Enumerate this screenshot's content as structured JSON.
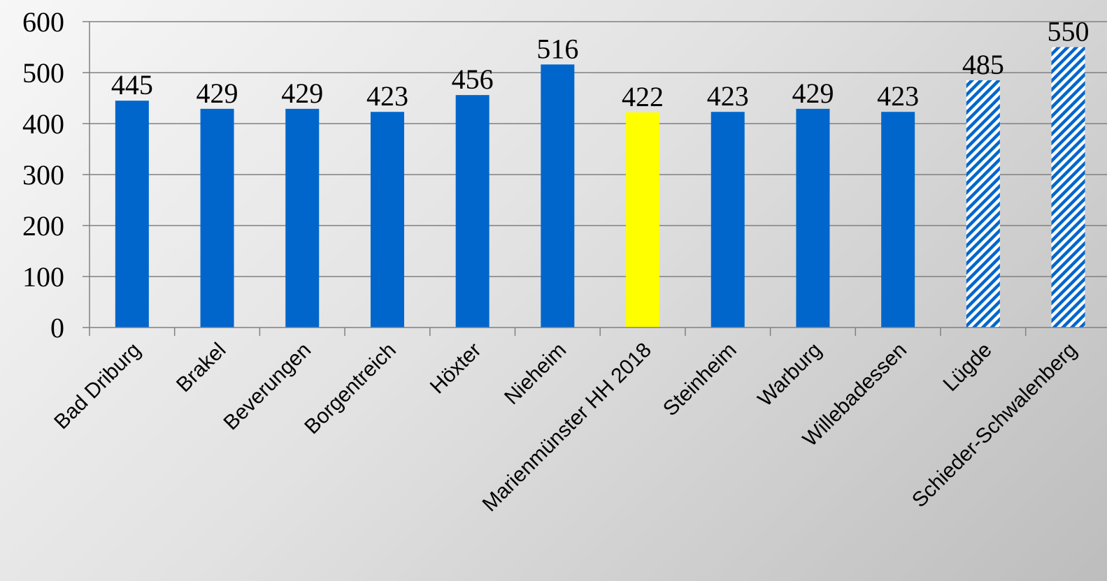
{
  "chart_data": {
    "type": "bar",
    "categories": [
      "Bad Driburg",
      "Brakel",
      "Beverungen",
      "Borgentreich",
      "Höxter",
      "Nieheim",
      "Marienmünster HH 2018",
      "Steinheim",
      "Warburg",
      "Willebadessen",
      "Lügde",
      "Schieder-Schwalenberg"
    ],
    "values": [
      445,
      429,
      429,
      423,
      456,
      516,
      422,
      423,
      429,
      423,
      485,
      550
    ],
    "bar_styles": [
      "solid",
      "solid",
      "solid",
      "solid",
      "solid",
      "solid",
      "highlight",
      "solid",
      "solid",
      "solid",
      "hatched",
      "hatched"
    ],
    "colors": {
      "solid": "#0066cc",
      "highlight": "#ffff00",
      "hatched": "#0066cc",
      "axis": "#808080"
    },
    "title": "",
    "xlabel": "",
    "ylabel": "",
    "ylim": [
      0,
      600
    ],
    "yticks": [
      0,
      100,
      200,
      300,
      400,
      500,
      600
    ],
    "grid": true,
    "legend": "none",
    "data_labels": true
  }
}
